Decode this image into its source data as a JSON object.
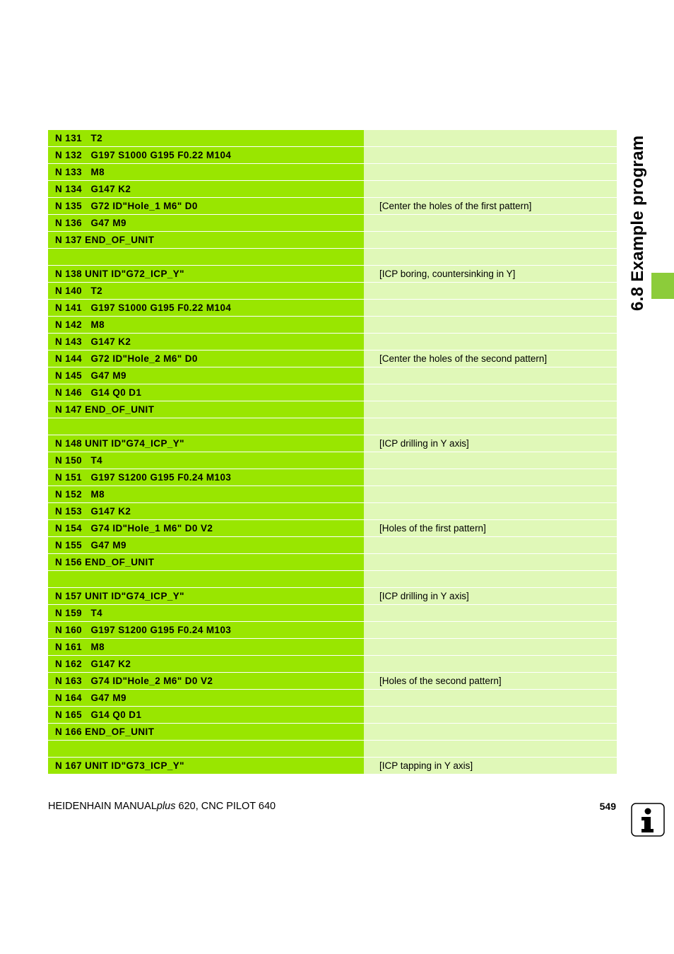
{
  "side_title": "6.8 Example program",
  "footer": {
    "left_prefix": "HEIDENHAIN MANUAL",
    "left_italic": "plus",
    "left_suffix": " 620, CNC PILOT 640",
    "page_number": "549"
  },
  "icons": {
    "info": "info-icon"
  },
  "colors": {
    "code_cell": "#99e600",
    "comment_cell": "#e0f8b8",
    "side_tab": "#8ccc3a"
  },
  "rows": [
    {
      "code": "N 131   T2",
      "comment": ""
    },
    {
      "code": "N 132   G197 S1000 G195 F0.22 M104",
      "comment": ""
    },
    {
      "code": "N 133   M8",
      "comment": ""
    },
    {
      "code": "N 134   G147 K2",
      "comment": ""
    },
    {
      "code": "N 135   G72 ID\"Hole_1 M6\" D0",
      "comment": "[Center the holes of the first pattern]"
    },
    {
      "code": "N 136   G47 M9",
      "comment": ""
    },
    {
      "code": "N 137 END_OF_UNIT",
      "comment": ""
    },
    {
      "code": "",
      "comment": ""
    },
    {
      "code": "N 138 UNIT ID\"G72_ICP_Y\"",
      "comment": "[ICP boring, countersinking in Y]"
    },
    {
      "code": "N 140   T2",
      "comment": ""
    },
    {
      "code": "N 141   G197 S1000 G195 F0.22 M104",
      "comment": ""
    },
    {
      "code": "N 142   M8",
      "comment": ""
    },
    {
      "code": "N 143   G147 K2",
      "comment": ""
    },
    {
      "code": "N 144   G72 ID\"Hole_2 M6\" D0",
      "comment": "[Center the holes of the second pattern]"
    },
    {
      "code": "N 145   G47 M9",
      "comment": ""
    },
    {
      "code": "N 146   G14 Q0 D1",
      "comment": ""
    },
    {
      "code": "N 147 END_OF_UNIT",
      "comment": ""
    },
    {
      "code": "",
      "comment": ""
    },
    {
      "code": "N 148 UNIT ID\"G74_ICP_Y\"",
      "comment": "[ICP drilling in Y axis]"
    },
    {
      "code": "N 150   T4",
      "comment": ""
    },
    {
      "code": "N 151   G197 S1200 G195 F0.24 M103",
      "comment": ""
    },
    {
      "code": "N 152   M8",
      "comment": ""
    },
    {
      "code": "N 153   G147 K2",
      "comment": ""
    },
    {
      "code": "N 154   G74 ID\"Hole_1 M6\" D0 V2",
      "comment": "[Holes of the first pattern]"
    },
    {
      "code": "N 155   G47 M9",
      "comment": ""
    },
    {
      "code": "N 156 END_OF_UNIT",
      "comment": ""
    },
    {
      "code": "",
      "comment": ""
    },
    {
      "code": "N 157 UNIT ID\"G74_ICP_Y\"",
      "comment": "[ICP drilling in Y axis]"
    },
    {
      "code": "N 159   T4",
      "comment": ""
    },
    {
      "code": "N 160   G197 S1200 G195 F0.24 M103",
      "comment": ""
    },
    {
      "code": "N 161   M8",
      "comment": ""
    },
    {
      "code": "N 162   G147 K2",
      "comment": ""
    },
    {
      "code": "N 163   G74 ID\"Hole_2 M6\" D0 V2",
      "comment": "[Holes of the second pattern]"
    },
    {
      "code": "N 164   G47 M9",
      "comment": ""
    },
    {
      "code": "N 165   G14 Q0 D1",
      "comment": ""
    },
    {
      "code": "N 166 END_OF_UNIT",
      "comment": ""
    },
    {
      "code": "",
      "comment": ""
    },
    {
      "code": "N 167 UNIT ID\"G73_ICP_Y\"",
      "comment": "[ICP tapping in Y axis]"
    }
  ]
}
